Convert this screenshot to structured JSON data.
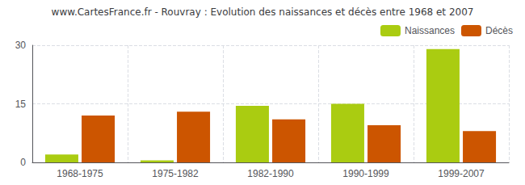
{
  "chart_data": {
    "type": "bar",
    "title": "www.CartesFrance.fr - Rouvray : Evolution des naissances et décès entre 1968 et 2007",
    "categories": [
      "1968-1975",
      "1975-1982",
      "1982-1990",
      "1990-1999",
      "1999-2007"
    ],
    "series": [
      {
        "name": "Naissances",
        "color": "#aacc11",
        "values": [
          2,
          0.5,
          14.5,
          15,
          29
        ]
      },
      {
        "name": "Décès",
        "color": "#cc5500",
        "values": [
          12,
          13,
          11,
          9.5,
          8
        ]
      }
    ],
    "ylim": [
      0,
      30
    ],
    "yticks": [
      0,
      15,
      30
    ],
    "grid": true,
    "legend": "upper right"
  }
}
